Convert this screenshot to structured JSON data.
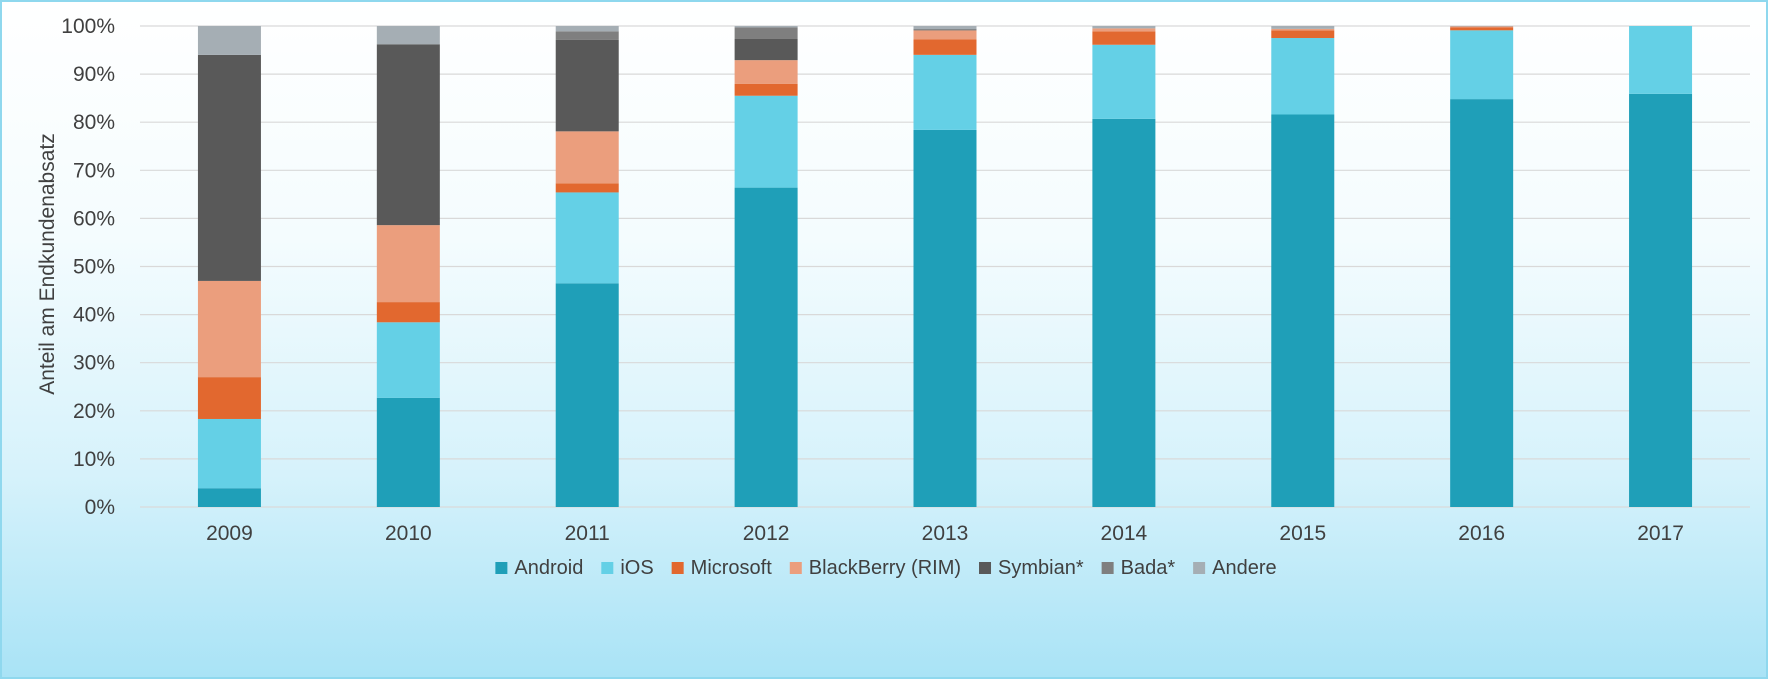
{
  "chart_data": {
    "type": "bar",
    "stacked": true,
    "categories": [
      "2009",
      "2010",
      "2011",
      "2012",
      "2013",
      "2014",
      "2015",
      "2016",
      "2017"
    ],
    "series": [
      {
        "name": "Android",
        "color": "#1f9fb8",
        "values": [
          3.9,
          22.7,
          46.5,
          66.4,
          78.4,
          80.7,
          81.6,
          84.8,
          85.9
        ]
      },
      {
        "name": "iOS",
        "color": "#64d0e6",
        "values": [
          14.4,
          15.7,
          18.9,
          19.1,
          15.6,
          15.4,
          15.9,
          14.3,
          14.1
        ]
      },
      {
        "name": "Microsoft",
        "color": "#e2682f",
        "values": [
          8.7,
          4.2,
          1.9,
          2.5,
          3.2,
          2.8,
          1.6,
          0.6,
          0
        ]
      },
      {
        "name": "BlackBerry (RIM)",
        "color": "#eb9e7d",
        "values": [
          20.0,
          16.0,
          10.8,
          4.9,
          1.9,
          0.6,
          0.3,
          0.2,
          0
        ]
      },
      {
        "name": "Symbian*",
        "color": "#595959",
        "values": [
          47.0,
          37.6,
          19.0,
          4.4,
          0.2,
          0,
          0,
          0,
          0
        ]
      },
      {
        "name": "Bada*",
        "color": "#7f7f7f",
        "values": [
          0,
          0,
          1.8,
          2.4,
          0,
          0,
          0,
          0,
          0
        ]
      },
      {
        "name": "Andere",
        "color": "#a5aeb4",
        "values": [
          6.0,
          3.8,
          1.1,
          0.3,
          0.7,
          0.5,
          0.6,
          0.1,
          0
        ]
      }
    ],
    "ylabel": "Anteil am Endkundenabsatz",
    "xlabel": "",
    "ylim": [
      0,
      100
    ],
    "yticks": [
      "0%",
      "10%",
      "20%",
      "30%",
      "40%",
      "50%",
      "60%",
      "70%",
      "80%",
      "90%",
      "100%"
    ],
    "grid": true,
    "legend_position": "bottom"
  }
}
